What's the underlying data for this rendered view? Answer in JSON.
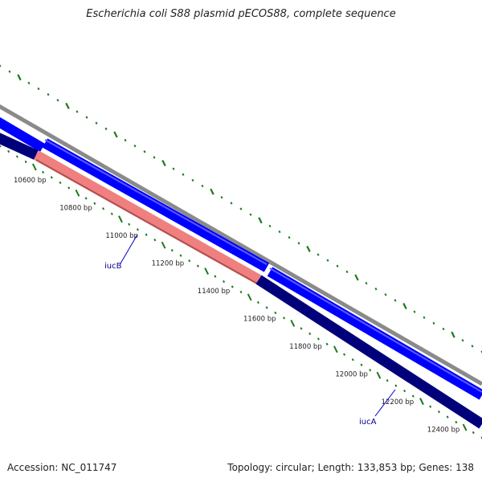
{
  "title": "Escherichia coli S88 plasmid pECOS88, complete sequence",
  "footer": {
    "accession": "Accession: NC_011747",
    "summary": "Topology: circular; Length: 133,853 bp; Genes: 138"
  },
  "colors": {
    "backbone": "#8a8a8a",
    "forward_cds": "#0000ff",
    "reverse_cds": "#00007a",
    "highlight_cds": "#f08080",
    "tick": "#1a7a1a",
    "gene_label": "#00008b"
  },
  "scale_labels": [
    "10600 bp",
    "10800 bp",
    "11000 bp",
    "11200 bp",
    "11400 bp",
    "11600 bp",
    "11800 bp",
    "12000 bp",
    "12200 bp",
    "12400 bp"
  ],
  "genes": [
    {
      "name": "iucB"
    },
    {
      "name": "iucA"
    }
  ]
}
